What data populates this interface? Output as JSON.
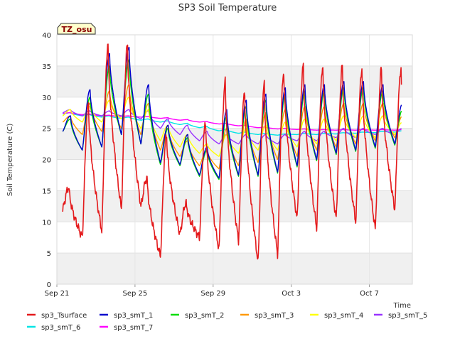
{
  "chart_data": {
    "type": "line",
    "title": "SP3 Soil Temperature",
    "xlabel": "Time",
    "ylabel": "Soil Temperature (C)",
    "badge": "TZ_osu",
    "ylim": [
      0,
      40
    ],
    "yticks": [
      0,
      5,
      10,
      15,
      20,
      25,
      30,
      35,
      40
    ],
    "xlim": [
      0,
      18.2
    ],
    "xticks": [
      {
        "day": 0,
        "label": "Sep 21"
      },
      {
        "day": 4,
        "label": "Sep 25"
      },
      {
        "day": 8,
        "label": "Sep 29"
      },
      {
        "day": 12,
        "label": "Oct 3"
      },
      {
        "day": 16,
        "label": "Oct 7"
      }
    ],
    "grid": true,
    "legend_position": "bottom",
    "days": [
      0.3,
      1.3,
      2.3,
      3.3,
      4.3,
      5.3,
      6.3,
      7.3,
      8.3,
      9.3,
      10.3,
      11.3,
      12.3,
      13.3,
      14.3,
      15.3,
      16.3,
      17.3
    ],
    "series": [
      {
        "name": "sp3_Tsurface",
        "color": "#e41a1c",
        "mins": [
          12,
          7.5,
          8.5,
          12,
          12.5,
          4.5,
          8,
          7.5,
          5.5,
          7,
          3.5,
          4.8,
          10.5,
          9,
          10.5,
          10,
          8.8,
          12
        ],
        "maxs": [
          15.5,
          29,
          38.5,
          38.5,
          17,
          24,
          13,
          26,
          32.5,
          31,
          32,
          34,
          35,
          35,
          35,
          34.5,
          34.5,
          34.5
        ]
      },
      {
        "name": "sp3_smT_1",
        "color": "#0000cd",
        "mins": [
          24.5,
          21.5,
          22,
          24,
          22.5,
          19.5,
          19.2,
          17.5,
          17,
          17.5,
          17.5,
          18,
          19,
          20,
          21,
          21.5,
          22,
          22.5
        ],
        "maxs": [
          27,
          31.2,
          37,
          38,
          32,
          25.5,
          24,
          22,
          28,
          29.5,
          30.5,
          31.5,
          32,
          32,
          32.5,
          32.5,
          32,
          29
        ]
      },
      {
        "name": "sp3_smT_2",
        "color": "#00dd00",
        "mins": [
          24.5,
          21.5,
          22,
          24,
          22.5,
          19.2,
          19,
          17.3,
          16.8,
          17.3,
          17.3,
          17.8,
          18.8,
          19.8,
          20.8,
          21.3,
          21.8,
          22.3
        ],
        "maxs": [
          26.5,
          30,
          35,
          36,
          30.5,
          25,
          23.5,
          21.5,
          27,
          28.5,
          29.5,
          30.5,
          31,
          31,
          31.5,
          31.5,
          31,
          28
        ]
      },
      {
        "name": "sp3_smT_3",
        "color": "#ff9900",
        "mins": [
          26,
          24,
          24.5,
          25,
          24,
          21.5,
          20.5,
          19,
          18.5,
          19,
          19.5,
          20,
          20.5,
          21.5,
          22,
          22.5,
          23,
          23.5
        ],
        "maxs": [
          27,
          29,
          31,
          32,
          29,
          25,
          23,
          21.5,
          25,
          26.5,
          27.5,
          28,
          28.5,
          28.5,
          29,
          29,
          29,
          27
        ]
      },
      {
        "name": "sp3_smT_4",
        "color": "#ffff00",
        "mins": [
          27,
          26,
          26,
          26.5,
          25,
          23,
          22,
          21,
          20.5,
          21,
          21.5,
          21.5,
          22,
          22.5,
          23,
          23.5,
          23.5,
          24
        ],
        "maxs": [
          28,
          28.5,
          29.5,
          30,
          28,
          25.5,
          24,
          22.5,
          24,
          25,
          25.5,
          26,
          26.5,
          26.5,
          27,
          27,
          27,
          26
        ]
      },
      {
        "name": "sp3_smT_5",
        "color": "#9933ff",
        "mins": [
          27.5,
          27,
          27,
          27,
          26.5,
          25,
          24,
          23,
          22.5,
          22.5,
          22.5,
          22.5,
          23,
          23,
          23.5,
          23.5,
          24,
          24
        ],
        "maxs": [
          28,
          27.8,
          27.8,
          28,
          27.8,
          26.5,
          25.5,
          24.5,
          24,
          24,
          24,
          24,
          24.5,
          24.5,
          25,
          25,
          25,
          25
        ]
      },
      {
        "name": "sp3_smT_6",
        "color": "#00e5e5",
        "mins": [
          27.3,
          27,
          26.8,
          26.6,
          26.3,
          26,
          25.6,
          25.1,
          24.6,
          24.2,
          24,
          23.9,
          24,
          24,
          24.1,
          24.2,
          24.3,
          24.4
        ],
        "maxs": [
          27.5,
          27.2,
          27,
          26.8,
          26.5,
          26.2,
          25.8,
          25.3,
          24.8,
          24.4,
          24.2,
          24.1,
          24.2,
          24.2,
          24.3,
          24.4,
          24.5,
          24.6
        ]
      },
      {
        "name": "sp3_smT_7",
        "color": "#ff00ff",
        "mins": [
          27.4,
          27.2,
          27,
          26.9,
          26.8,
          26.6,
          26.3,
          26,
          25.7,
          25.4,
          25.1,
          24.9,
          24.8,
          24.7,
          24.7,
          24.7,
          24.7,
          24.7
        ],
        "maxs": [
          27.5,
          27.3,
          27.1,
          27,
          26.9,
          26.7,
          26.4,
          26.1,
          25.8,
          25.5,
          25.2,
          25,
          24.9,
          24.8,
          24.8,
          24.8,
          24.8,
          24.8
        ]
      }
    ]
  }
}
